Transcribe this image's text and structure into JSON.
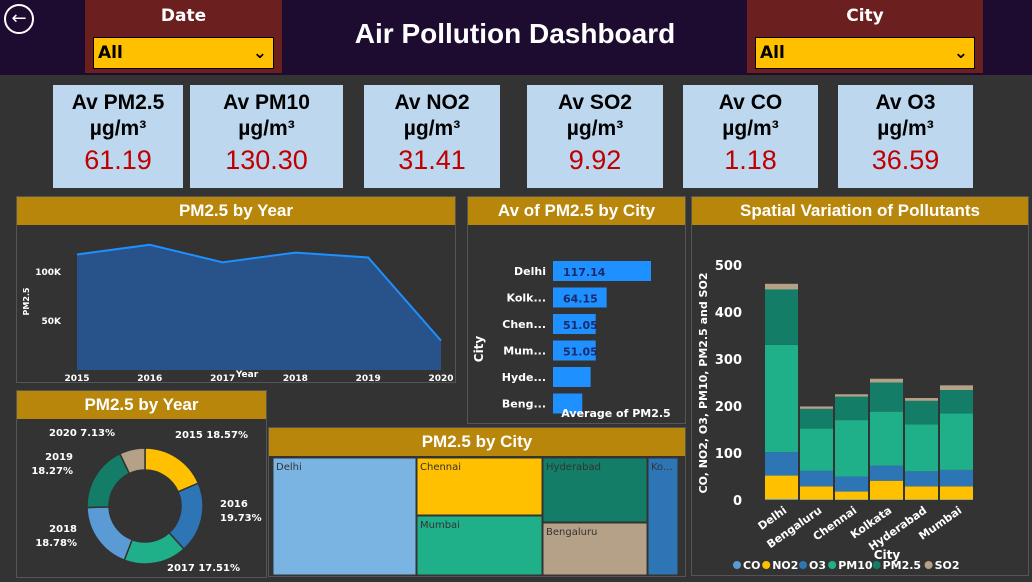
{
  "header": {
    "title": "Air Pollution Dashboard",
    "date_label": "Date",
    "date_value": "All",
    "city_label": "City",
    "city_value": "All"
  },
  "cards": [
    {
      "l1": "Av PM2.5",
      "l2": "µg/m³",
      "value": "61.19"
    },
    {
      "l1": "Av PM10",
      "l2": "µg/m³",
      "value": "130.30"
    },
    {
      "l1": "Av NO2",
      "l2": "µg/m³",
      "value": "31.41"
    },
    {
      "l1": "Av SO2",
      "l2": "µg/m³",
      "value": "9.92"
    },
    {
      "l1": "Av CO",
      "l2": "µg/m³",
      "value": "1.18"
    },
    {
      "l1": "Av O3",
      "l2": "µg/m³",
      "value": "36.59"
    }
  ],
  "panels": {
    "area_title": "PM2.5 by Year",
    "bar_title": "Av of PM2.5 by City",
    "stack_title": "Spatial Variation of Pollutants",
    "donut_title": "PM2.5 by Year",
    "tree_title": "PM2.5 by City"
  },
  "chart_data": [
    {
      "type": "area",
      "title": "PM2.5 by Year",
      "xlabel": "Year",
      "ylabel": "PM2.5",
      "x": [
        "2015",
        "2016",
        "2017",
        "2018",
        "2019",
        "2020"
      ],
      "values": [
        118000,
        128000,
        110000,
        120000,
        115000,
        30000
      ],
      "ylim": [
        0,
        140000
      ],
      "ytick_labels": [
        "50K",
        "100K"
      ],
      "color": "#1e90ff"
    },
    {
      "type": "bar",
      "orientation": "horizontal",
      "title": "Av of PM2.5 by City",
      "xlabel": "Average of PM2.5",
      "ylabel": "City",
      "categories": [
        "Delhi",
        "Kolk...",
        "Chen...",
        "Mum...",
        "Hyde...",
        "Beng..."
      ],
      "values": [
        117.14,
        64.15,
        51.05,
        51.05,
        45,
        35
      ],
      "labels": [
        "117.14",
        "64.15",
        "51.05",
        "51.05",
        "",
        ""
      ],
      "color": "#1e90ff"
    },
    {
      "type": "bar",
      "stacked": true,
      "title": "Spatial Variation of Pollutants",
      "xlabel": "City",
      "ylabel": "CO, NO2, O3, PM10, PM2.5 and SO2",
      "categories": [
        "Delhi",
        "Bengaluru",
        "Chennai",
        "Kolkata",
        "Hyderabad",
        "Mumbai"
      ],
      "ylim": [
        0,
        500
      ],
      "yticks": [
        0,
        100,
        200,
        300,
        400,
        500
      ],
      "series": [
        {
          "name": "CO",
          "color": "#5b9bd5",
          "values": [
            2,
            1,
            1,
            1,
            1,
            1
          ]
        },
        {
          "name": "NO2",
          "color": "#ffc000",
          "values": [
            50,
            28,
            17,
            40,
            28,
            28
          ]
        },
        {
          "name": "O3",
          "color": "#2e75b6",
          "values": [
            50,
            33,
            32,
            32,
            32,
            35
          ]
        },
        {
          "name": "PM10",
          "color": "#1fb08a",
          "values": [
            228,
            90,
            120,
            115,
            100,
            120
          ]
        },
        {
          "name": "PM2.5",
          "color": "#137d67",
          "values": [
            118,
            42,
            50,
            62,
            50,
            50
          ]
        },
        {
          "name": "SO2",
          "color": "#b5a088",
          "values": [
            12,
            5,
            5,
            8,
            6,
            10
          ]
        }
      ]
    },
    {
      "type": "pie",
      "donut": true,
      "title": "PM2.5 by Year",
      "categories": [
        "2015",
        "2016",
        "2017",
        "2018",
        "2019",
        "2020"
      ],
      "values": [
        18.57,
        19.73,
        17.51,
        18.78,
        18.27,
        7.13
      ],
      "labels": [
        "2015 18.57%",
        "2016 19.73%",
        "2017 17.51%",
        "2018 18.78%",
        "2019 18.27%",
        "2020 7.13%"
      ],
      "colors": [
        "#ffc000",
        "#2e75b6",
        "#1fb08a",
        "#5b9bd5",
        "#137d67",
        "#b5a088"
      ]
    },
    {
      "type": "treemap",
      "title": "PM2.5 by City",
      "categories": [
        "Delhi",
        "Chennai",
        "Mumbai",
        "Hyderabad",
        "Bengaluru",
        "Ko..."
      ],
      "colors": [
        "#7ab4e2",
        "#ffc000",
        "#1fb08a",
        "#137d67",
        "#b5a088",
        "#2e75b6"
      ]
    }
  ]
}
